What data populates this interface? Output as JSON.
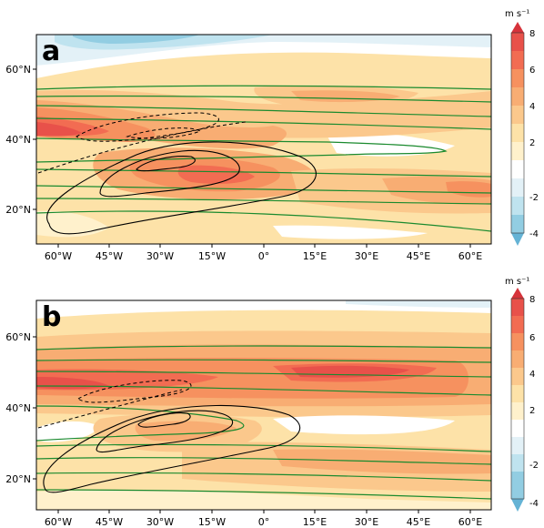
{
  "panels": [
    {
      "letter": "a",
      "lat_labels": [
        "60°N",
        "40°N",
        "20°N"
      ],
      "lon_labels": [
        "60°W",
        "45°W",
        "30°W",
        "15°W",
        "0°",
        "15°E",
        "30°E",
        "45°E",
        "60°E"
      ],
      "colorbar": {
        "unit": "m s⁻¹",
        "tick_labels": [
          "8",
          "6",
          "4",
          "2",
          "-2",
          "-4"
        ]
      }
    },
    {
      "letter": "b",
      "lat_labels": [
        "60°N",
        "40°N",
        "20°N"
      ],
      "lon_labels": [
        "60°W",
        "45°W",
        "30°W",
        "15°W",
        "0°",
        "15°E",
        "30°E",
        "45°E",
        "60°E"
      ],
      "colorbar": {
        "unit": "m s⁻¹",
        "tick_labels": [
          "8",
          "6",
          "4",
          "2",
          "-2",
          "-4"
        ]
      }
    }
  ],
  "colors": {
    "level_8": "#d6333b",
    "level_7": "#e8514a",
    "level_6": "#f26c52",
    "level_5": "#f6915f",
    "level_4": "#f8ad73",
    "level_3": "#fbc88c",
    "level_2": "#fde2a8",
    "level_1": "#fff1cc",
    "neg_1": "#e3f1f7",
    "neg_2": "#bfe3ef",
    "neg_3": "#92cde2",
    "neg_4": "#65b3d5",
    "green_contour": "#1a8a2e",
    "black_contour": "#000000"
  }
}
